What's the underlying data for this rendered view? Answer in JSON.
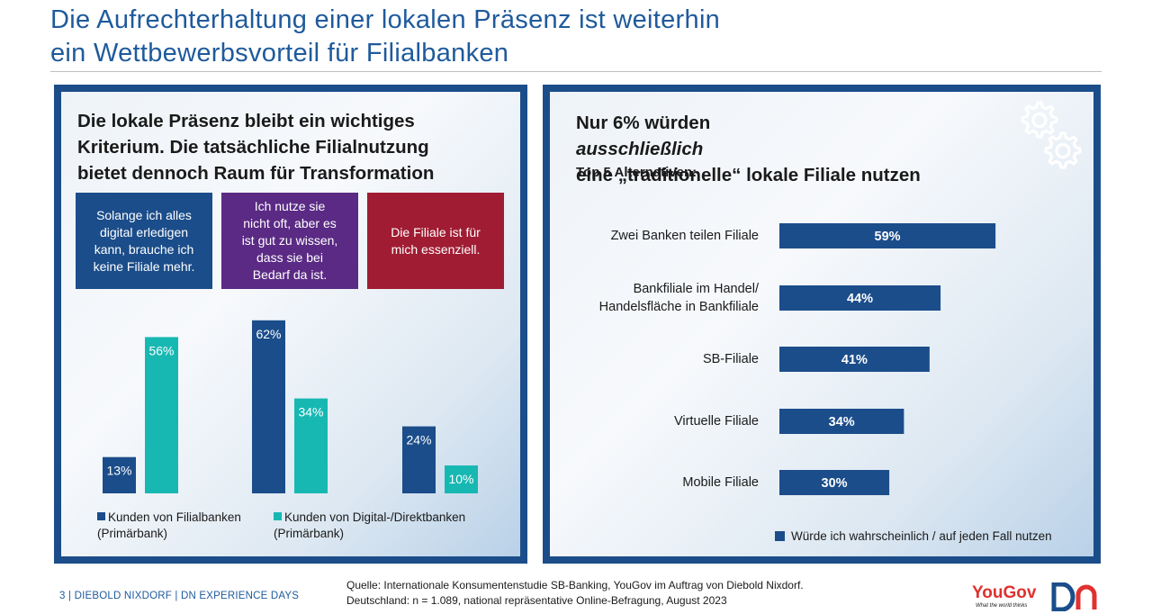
{
  "title": {
    "line1": "Die Aufrechterhaltung  einer  lokalen  Präsenz  ist  weiterhin",
    "line2": "ein  Wettbewerbsvorteil  für  Filialbanken"
  },
  "left_panel": {
    "heading": [
      "Die lokale Präsenz bleibt ein wichtiges",
      "Kriterium. Die tatsächliche Filialnutzung",
      "bietet dennoch Raum für Transformation"
    ],
    "quotes": [
      {
        "lines": [
          "Solange ich alles",
          "digital erledigen",
          "kann, brauche ich",
          "keine Filiale mehr."
        ],
        "color": "#1b4d8a"
      },
      {
        "lines": [
          "Ich nutze sie",
          "nicht oft, aber es",
          "ist gut zu wissen,",
          "dass sie bei",
          "Bedarf da ist."
        ],
        "color": "#5a2a84"
      },
      {
        "lines": [
          "Die Filiale ist für",
          "mich essenziell."
        ],
        "color": "#a01c33"
      }
    ],
    "legend": [
      {
        "line1": "Kunden von Filialbanken",
        "line2": "(Primärbank)",
        "color": "#1b4d8a"
      },
      {
        "line1": "Kunden von Digital-/Direktbanken",
        "line2": "(Primärbank)",
        "color": "#17b8b2"
      }
    ]
  },
  "right_panel": {
    "heading_prefix": "Nur 6%  würden ",
    "heading_emphasis": "ausschließlich",
    "heading_line2": "eine „traditionelle“ lokale Filiale nutzen",
    "subheading": "Top 5 Alternativen:",
    "gear_icon": "gears-icon",
    "legend": "Würde ich wahrscheinlich / auf jeden Fall nutzen"
  },
  "chart_data": [
    {
      "type": "bar",
      "categories": [
        "Solange ich alles digital erledigen kann, brauche ich keine Filiale mehr.",
        "Ich nutze sie nicht oft, aber es ist gut zu wissen, dass sie bei Bedarf da ist.",
        "Die Filiale ist für mich essenziell."
      ],
      "series": [
        {
          "name": "Kunden von Filialbanken (Primärbank)",
          "values": [
            13,
            62,
            24
          ],
          "labels": [
            "13%",
            "62%",
            "24%"
          ],
          "color": "#1b4d8a"
        },
        {
          "name": "Kunden von Digital-/Direktbanken (Primärbank)",
          "values": [
            56,
            34,
            10
          ],
          "labels": [
            "56%",
            "34%",
            "10%"
          ],
          "color": "#17b8b2"
        }
      ],
      "unit": "%",
      "ylim": [
        0,
        70
      ],
      "legend_position": "bottom",
      "grid": false
    },
    {
      "type": "bar",
      "orientation": "horizontal",
      "categories": [
        [
          "Zwei Banken teilen Filiale"
        ],
        [
          "Bankfiliale im Handel/",
          "Handelsfläche in Bankfiliale"
        ],
        [
          "SB-Filiale"
        ],
        [
          "Virtuelle Filiale"
        ],
        [
          "Mobile Filiale"
        ]
      ],
      "series": [
        {
          "name": "Würde ich wahrscheinlich / auf jeden Fall nutzen",
          "values": [
            59,
            44,
            41,
            34,
            30
          ],
          "labels": [
            "59%",
            "44%",
            "41%",
            "34%",
            "30%"
          ],
          "color": "#1b4d8a"
        }
      ],
      "unit": "%",
      "xlim": [
        0,
        100
      ],
      "legend_position": "bottom-right",
      "grid": false
    }
  ],
  "footer": {
    "left": "3  |  DIEBOLD NIXDORF  |  DN EXPERIENCE DAYS",
    "source_line1": "Quelle:  Internationale  Konsumentenstudie  SB-Banking,  YouGov  im  Auftrag  von  Diebold  Nixdorf.",
    "source_line2": "Deutschland:  n  =  1.089,  national  repräsentative  Online-Befragung,   August 2023",
    "yougov_logo": "YouGov",
    "yougov_tagline": "What the world thinks",
    "dn_logo": "dn-logo"
  }
}
